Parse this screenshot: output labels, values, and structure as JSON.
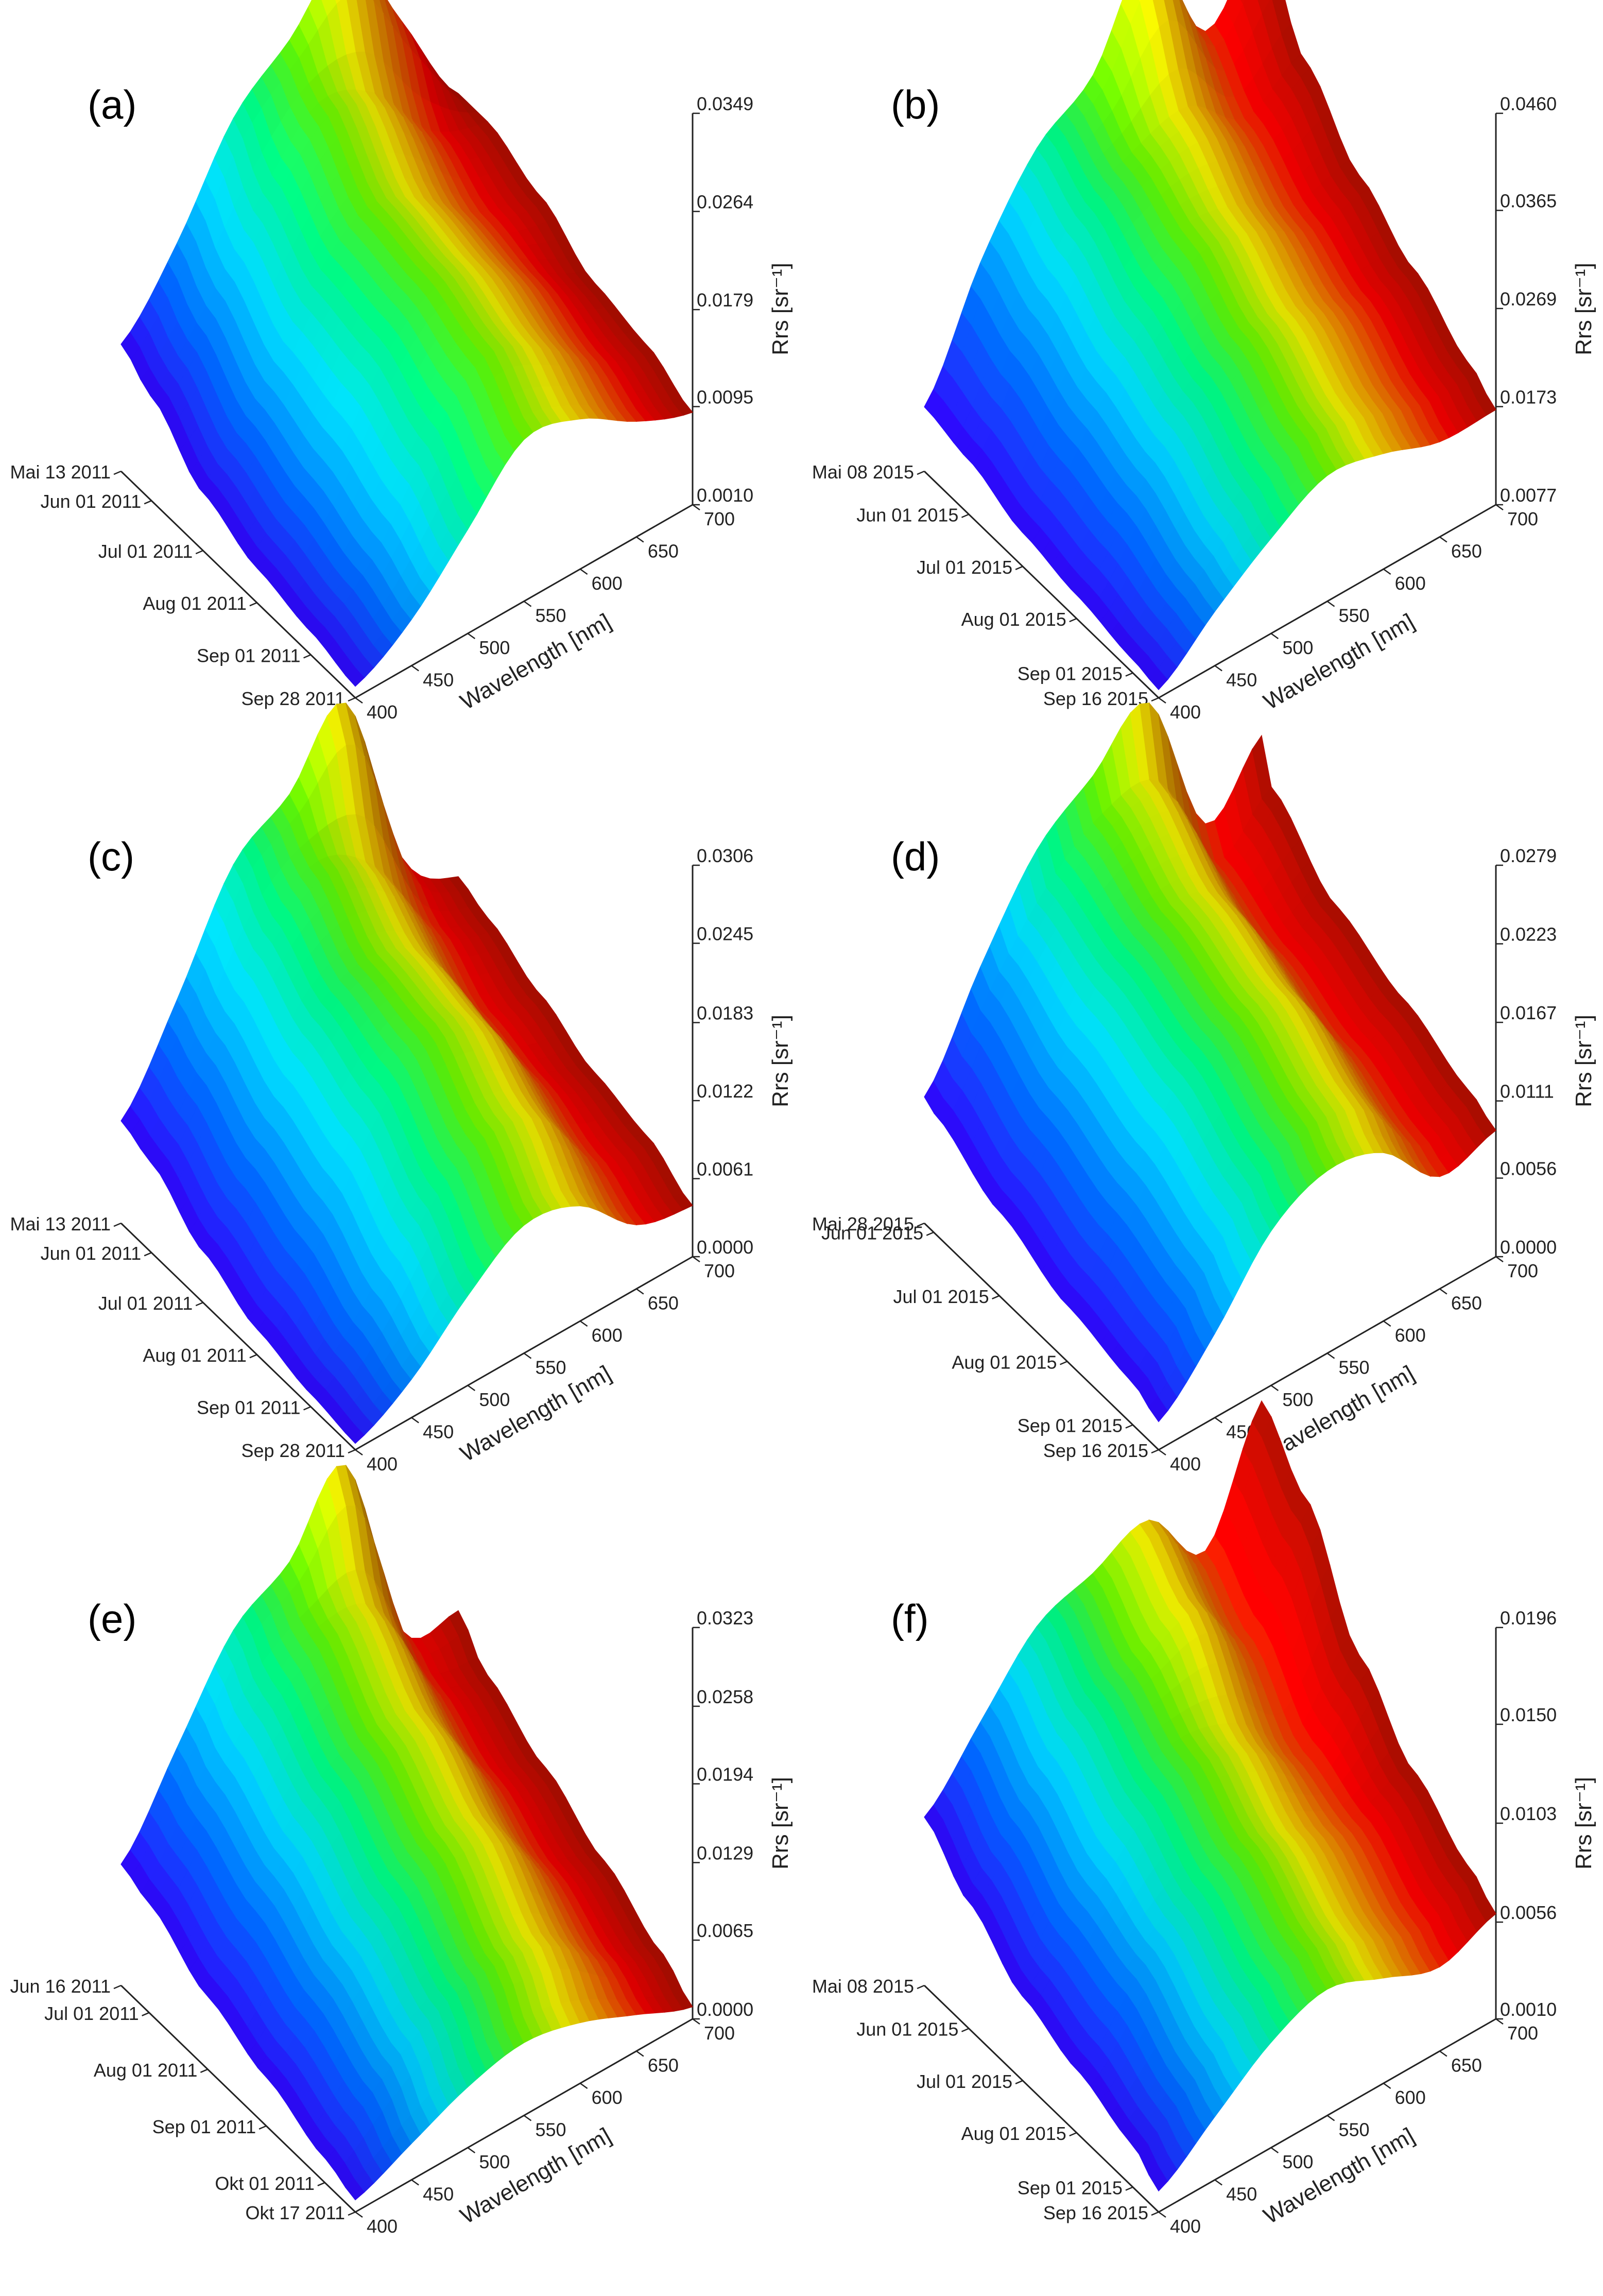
{
  "colormap": [
    "#3300ff",
    "#0066ff",
    "#00d8ff",
    "#00ff88",
    "#66ff00",
    "#ffff00",
    "#ff8800",
    "#ff0000",
    "#b01000"
  ],
  "chart_data": [
    {
      "type": "surface3d",
      "panel": "(a)",
      "xlabel": "Wavelength [nm]",
      "zlabel": "Rrs [sr⁻¹]",
      "wavelength_ticks": [
        "400",
        "450",
        "500",
        "550",
        "600",
        "650",
        "700"
      ],
      "date_ticks": [
        "Mai 13 2011",
        "Jun 01 2011",
        "Jul 01 2011",
        "Aug 01 2011",
        "Sep 01 2011",
        "Sep 28 2011"
      ],
      "z_ticks": [
        "0.0010",
        "0.0095",
        "0.0179",
        "0.0264",
        "0.0349"
      ],
      "zlim": [
        0.001,
        0.0349
      ],
      "wavelengths": [
        400,
        450,
        500,
        550,
        600,
        650,
        700
      ],
      "date_fraction": [
        0,
        0.13,
        0.35,
        0.58,
        0.81,
        1.0
      ],
      "rrs": [
        [
          0.012,
          0.018,
          0.026,
          0.03,
          0.0345,
          0.026,
          0.017
        ],
        [
          0.01,
          0.015,
          0.022,
          0.027,
          0.025,
          0.019,
          0.017
        ],
        [
          0.006,
          0.011,
          0.018,
          0.022,
          0.02,
          0.016,
          0.015
        ],
        [
          0.004,
          0.009,
          0.017,
          0.021,
          0.019,
          0.015,
          0.012
        ],
        [
          0.003,
          0.007,
          0.014,
          0.019,
          0.017,
          0.013,
          0.011
        ],
        [
          0.002,
          0.005,
          0.01,
          0.015,
          0.014,
          0.011,
          0.009
        ]
      ]
    },
    {
      "type": "surface3d",
      "panel": "(b)",
      "xlabel": "Wavelength [nm]",
      "zlabel": "Rrs [sr⁻¹]",
      "wavelength_ticks": [
        "400",
        "450",
        "500",
        "550",
        "600",
        "650",
        "700"
      ],
      "date_ticks": [
        "Mai 08 2015",
        "Jun 01 2015",
        "Jul 01 2015",
        "Aug 01 2015",
        "Sep 01 2015",
        "Sep 16 2015"
      ],
      "z_ticks": [
        "0.0077",
        "0.0173",
        "0.0269",
        "0.0365",
        "0.0460"
      ],
      "zlim": [
        0.0077,
        0.046
      ],
      "wavelengths": [
        400,
        450,
        500,
        550,
        600,
        650,
        700
      ],
      "date_fraction": [
        0,
        0.19,
        0.42,
        0.65,
        0.89,
        1.0
      ],
      "rrs": [
        [
          0.014,
          0.025,
          0.033,
          0.037,
          0.046,
          0.035,
          0.042
        ],
        [
          0.013,
          0.022,
          0.03,
          0.033,
          0.034,
          0.03,
          0.033
        ],
        [
          0.011,
          0.019,
          0.026,
          0.03,
          0.029,
          0.026,
          0.027
        ],
        [
          0.01,
          0.017,
          0.023,
          0.026,
          0.025,
          0.023,
          0.023
        ],
        [
          0.009,
          0.014,
          0.019,
          0.022,
          0.021,
          0.019,
          0.019
        ],
        [
          0.0085,
          0.013,
          0.017,
          0.02,
          0.019,
          0.017,
          0.017
        ]
      ]
    },
    {
      "type": "surface3d",
      "panel": "(c)",
      "xlabel": "Wavelength [nm]",
      "zlabel": "Rrs [sr⁻¹]",
      "wavelength_ticks": [
        "400",
        "450",
        "500",
        "550",
        "600",
        "650",
        "700"
      ],
      "date_ticks": [
        "Mai 13 2011",
        "Jun 01 2011",
        "Jul 01 2011",
        "Aug 01 2011",
        "Sep 01 2011",
        "Sep 28 2011"
      ],
      "z_ticks": [
        "0.0000",
        "0.0061",
        "0.0122",
        "0.0183",
        "0.0245",
        "0.0306"
      ],
      "zlim": [
        0.0,
        0.0306
      ],
      "wavelengths": [
        400,
        450,
        500,
        550,
        600,
        650,
        700
      ],
      "date_fraction": [
        0,
        0.13,
        0.35,
        0.58,
        0.81,
        1.0
      ],
      "rrs": [
        [
          0.008,
          0.015,
          0.023,
          0.026,
          0.0306,
          0.016,
          0.012
        ],
        [
          0.007,
          0.013,
          0.02,
          0.023,
          0.02,
          0.013,
          0.011
        ],
        [
          0.004,
          0.01,
          0.017,
          0.019,
          0.017,
          0.01,
          0.009
        ],
        [
          0.002,
          0.008,
          0.015,
          0.018,
          0.016,
          0.009,
          0.007
        ],
        [
          0.001,
          0.005,
          0.011,
          0.014,
          0.013,
          0.007,
          0.006
        ],
        [
          0.0005,
          0.003,
          0.007,
          0.01,
          0.009,
          0.005,
          0.004
        ]
      ]
    },
    {
      "type": "surface3d",
      "panel": "(d)",
      "xlabel": "Wavelength [nm]",
      "zlabel": "Rrs [sr⁻¹]",
      "wavelength_ticks": [
        "400",
        "450",
        "500",
        "550",
        "600",
        "650",
        "700"
      ],
      "date_ticks": [
        "Mai 28 2015",
        "Jun 01 2015",
        "Jul 01 2015",
        "Aug 01 2015",
        "Sep 01 2015",
        "Sep 16 2015"
      ],
      "z_ticks": [
        "0.0000",
        "0.0056",
        "0.0111",
        "0.0167",
        "0.0223",
        "0.0279"
      ],
      "zlim": [
        0.0,
        0.0279
      ],
      "wavelengths": [
        400,
        450,
        500,
        550,
        600,
        650,
        700
      ],
      "date_fraction": [
        0,
        0.04,
        0.32,
        0.61,
        0.89,
        1.0
      ],
      "rrs": [
        [
          0.009,
          0.016,
          0.022,
          0.025,
          0.0279,
          0.017,
          0.021
        ],
        [
          0.0085,
          0.015,
          0.02,
          0.023,
          0.023,
          0.015,
          0.018
        ],
        [
          0.006,
          0.012,
          0.018,
          0.02,
          0.019,
          0.013,
          0.014
        ],
        [
          0.004,
          0.01,
          0.016,
          0.018,
          0.017,
          0.011,
          0.012
        ],
        [
          0.003,
          0.008,
          0.013,
          0.015,
          0.014,
          0.009,
          0.01
        ],
        [
          0.002,
          0.006,
          0.011,
          0.013,
          0.012,
          0.008,
          0.009
        ]
      ]
    },
    {
      "type": "surface3d",
      "panel": "(e)",
      "xlabel": "Wavelength [nm]",
      "zlabel": "Rrs [sr⁻¹]",
      "wavelength_ticks": [
        "400",
        "450",
        "500",
        "550",
        "600",
        "650",
        "700"
      ],
      "date_ticks": [
        "Jun 16 2011",
        "Jul 01 2011",
        "Aug 01 2011",
        "Sep 01 2011",
        "Okt 01 2011",
        "Okt 17 2011"
      ],
      "z_ticks": [
        "0.0000",
        "0.0065",
        "0.0129",
        "0.0194",
        "0.0258",
        "0.0323"
      ],
      "zlim": [
        0.0,
        0.0323
      ],
      "wavelengths": [
        400,
        450,
        500,
        550,
        600,
        650,
        700
      ],
      "date_fraction": [
        0,
        0.12,
        0.37,
        0.62,
        0.87,
        1.0
      ],
      "rrs": [
        [
          0.01,
          0.017,
          0.024,
          0.027,
          0.0323,
          0.016,
          0.015
        ],
        [
          0.009,
          0.015,
          0.021,
          0.024,
          0.023,
          0.014,
          0.012
        ],
        [
          0.006,
          0.012,
          0.017,
          0.019,
          0.018,
          0.011,
          0.009
        ],
        [
          0.004,
          0.009,
          0.013,
          0.015,
          0.014,
          0.008,
          0.006
        ],
        [
          0.002,
          0.006,
          0.009,
          0.01,
          0.009,
          0.005,
          0.003
        ],
        [
          0.001,
          0.003,
          0.005,
          0.006,
          0.005,
          0.003,
          0.001
        ]
      ]
    },
    {
      "type": "surface3d",
      "panel": "(f)",
      "xlabel": "Wavelength [nm]",
      "zlabel": "Rrs [sr⁻¹]",
      "wavelength_ticks": [
        "400",
        "450",
        "500",
        "550",
        "600",
        "650",
        "700"
      ],
      "date_ticks": [
        "Mai 08 2015",
        "Jun 01 2015",
        "Jul 01 2015",
        "Aug 01 2015",
        "Sep 01 2015",
        "Sep 16 2015"
      ],
      "z_ticks": [
        "0.0010",
        "0.0056",
        "0.0103",
        "0.0150",
        "0.0196"
      ],
      "zlim": [
        0.001,
        0.0196
      ],
      "wavelengths": [
        400,
        450,
        500,
        550,
        600,
        650,
        700
      ],
      "date_fraction": [
        0,
        0.19,
        0.42,
        0.65,
        0.89,
        1.0
      ],
      "rrs": [
        [
          0.009,
          0.012,
          0.015,
          0.016,
          0.017,
          0.014,
          0.0196
        ],
        [
          0.007,
          0.01,
          0.013,
          0.014,
          0.015,
          0.012,
          0.017
        ],
        [
          0.005,
          0.008,
          0.011,
          0.012,
          0.011,
          0.009,
          0.012
        ],
        [
          0.004,
          0.007,
          0.009,
          0.01,
          0.009,
          0.008,
          0.009
        ],
        [
          0.003,
          0.005,
          0.007,
          0.008,
          0.007,
          0.006,
          0.007
        ],
        [
          0.002,
          0.004,
          0.006,
          0.007,
          0.006,
          0.005,
          0.006
        ]
      ]
    }
  ]
}
